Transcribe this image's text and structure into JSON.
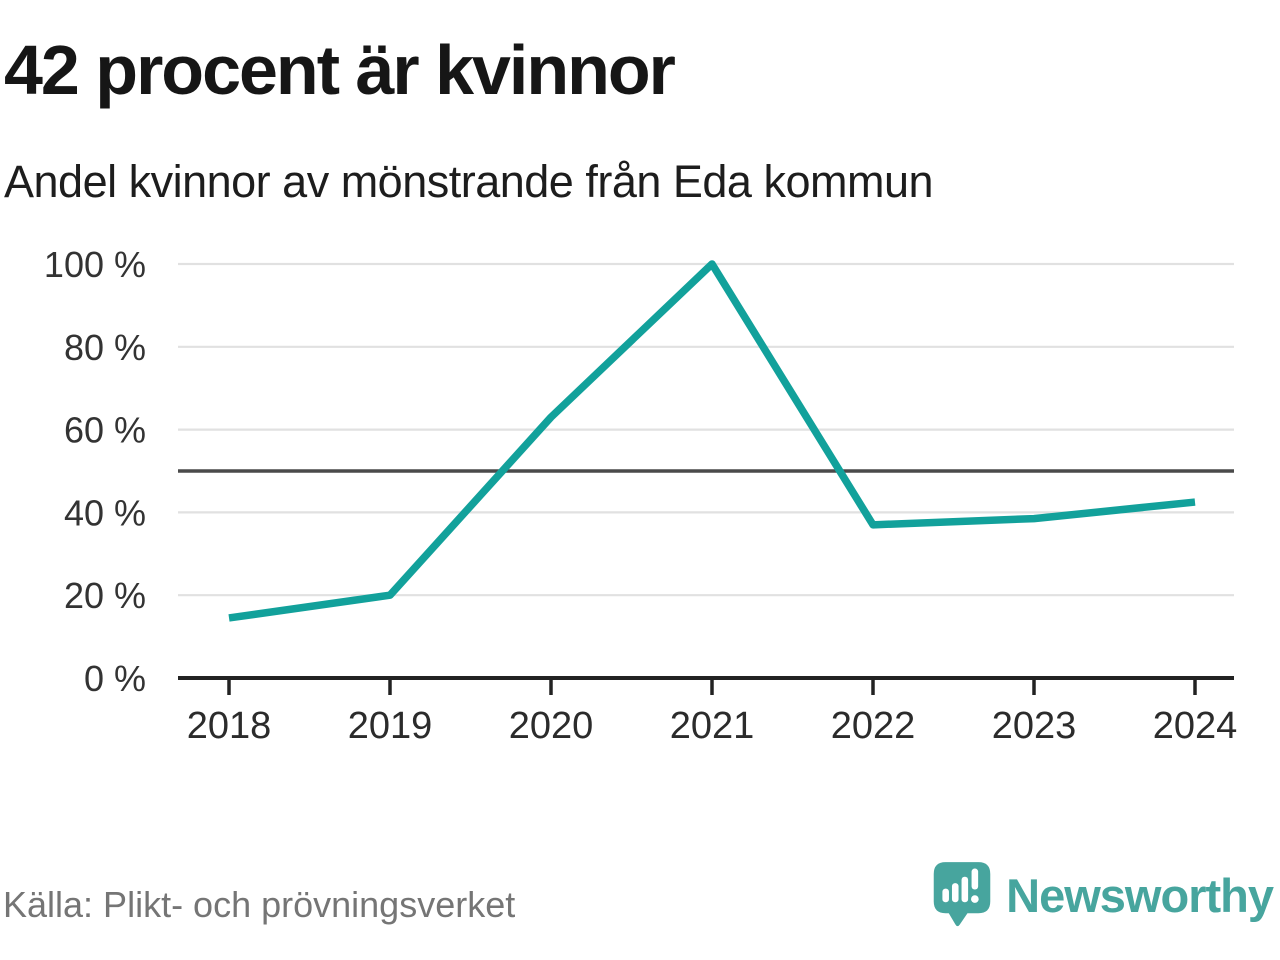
{
  "header": {
    "title": "42 procent är kvinnor",
    "subtitle": "Andel kvinnor av mönstrande från Eda kommun"
  },
  "footer": {
    "source": "Källa: Plikt- och prövningsverket",
    "brand_name": "Newsworthy"
  },
  "colors": {
    "line": "#12a19b",
    "brand_teal": "#47a59e",
    "gridline": "#e1e1e1",
    "reference_line": "#4a4a4a",
    "axis": "#222222"
  },
  "chart_data": {
    "type": "line",
    "title": "42 procent är kvinnor",
    "subtitle": "Andel kvinnor av mönstrande från Eda kommun",
    "categories": [
      "2018",
      "2019",
      "2020",
      "2021",
      "2022",
      "2023",
      "2024"
    ],
    "series": [
      {
        "name": "Andel kvinnor av mönstrande",
        "values": [
          14.5,
          20,
          63,
          100,
          37,
          38.5,
          42.5
        ]
      }
    ],
    "unit": "%",
    "xlabel": "",
    "ylabel": "",
    "ylim": [
      0,
      100
    ],
    "ytick_values": [
      0,
      20,
      40,
      60,
      80,
      100
    ],
    "ytick_labels": [
      "0 %",
      "20 %",
      "40 %",
      "60 %",
      "80 %",
      "100 %"
    ],
    "reference_line_value": 50,
    "grid": true,
    "legend_position": "none",
    "line_color": "#12a19b"
  }
}
